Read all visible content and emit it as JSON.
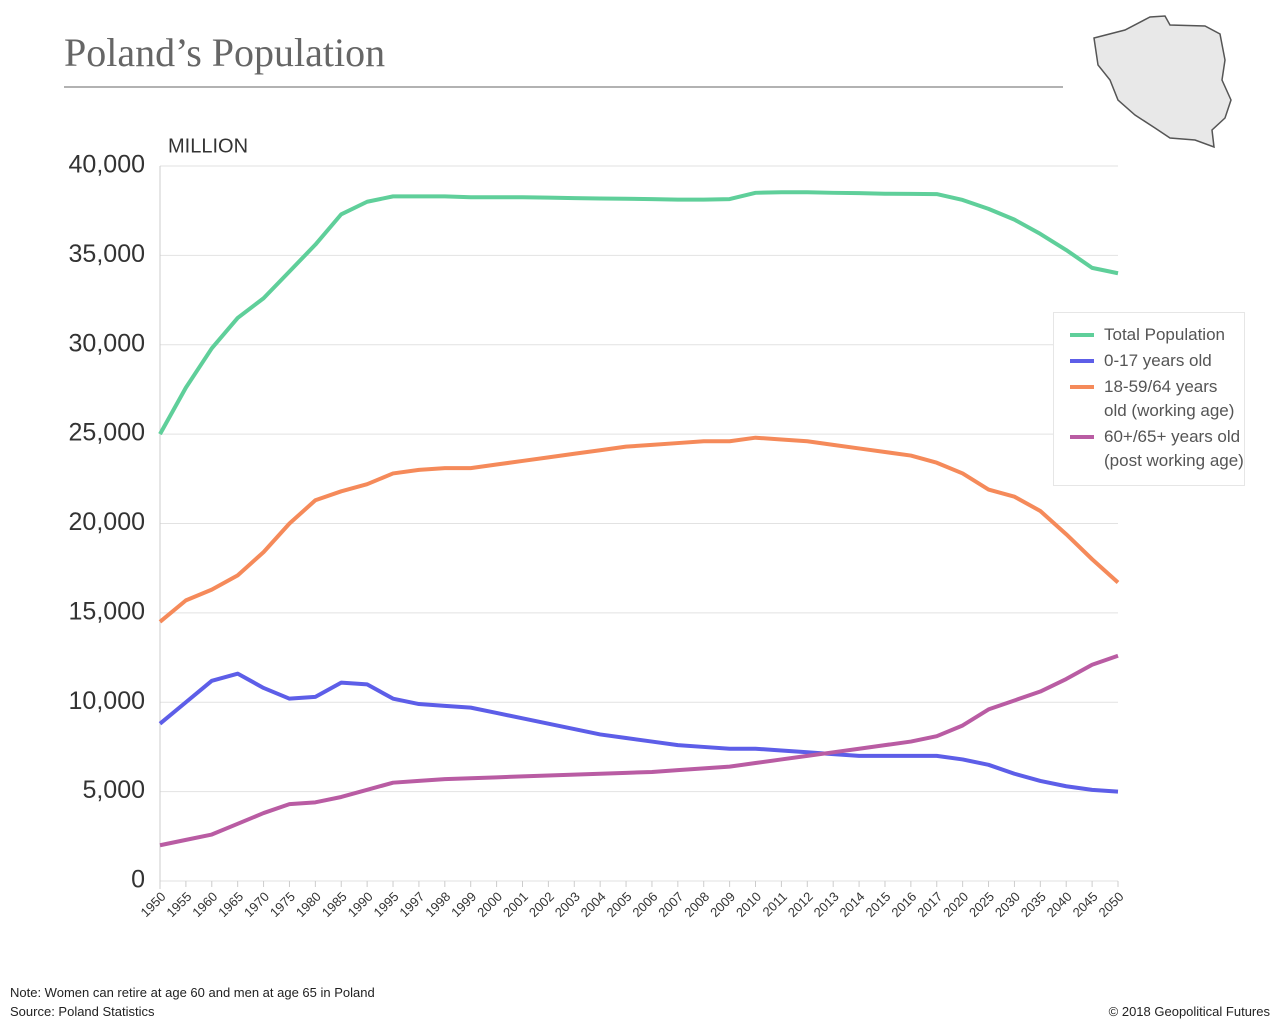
{
  "chart_data": {
    "type": "line",
    "title": "Poland’s Population",
    "y_label": "MILLION",
    "note": "Note: Women can retire at age 60 and men at age 65 in Poland",
    "source": "Source: Poland Statistics",
    "credit": "© 2018 Geopolitical Futures",
    "categories": [
      "1950",
      "1955",
      "1960",
      "1965",
      "1970",
      "1975",
      "1980",
      "1985",
      "1990",
      "1995",
      "1997",
      "1998",
      "1999",
      "2000",
      "2001",
      "2002",
      "2003",
      "2004",
      "2005",
      "2006",
      "2007",
      "2008",
      "2009",
      "2010",
      "2011",
      "2012",
      "2013",
      "2014",
      "2015",
      "2016",
      "2017",
      "2020",
      "2025",
      "2030",
      "2035",
      "2040",
      "2045",
      "2050"
    ],
    "series": [
      {
        "name": "Total Population",
        "color": "#5fcf9a",
        "values": [
          25000,
          27600,
          29800,
          31500,
          32600,
          34100,
          35600,
          37300,
          38000,
          38300,
          38300,
          38300,
          38250,
          38250,
          38250,
          38230,
          38200,
          38180,
          38170,
          38150,
          38120,
          38120,
          38150,
          38500,
          38530,
          38530,
          38500,
          38480,
          38450,
          38440,
          38430,
          38100,
          37600,
          37000,
          36200,
          35300,
          34300,
          34000
        ]
      },
      {
        "name": "0-17 years old",
        "color": "#5d5ee8",
        "values": [
          8800,
          10000,
          11200,
          11600,
          10800,
          10200,
          10300,
          11100,
          11000,
          10200,
          9900,
          9800,
          9700,
          9400,
          9100,
          8800,
          8500,
          8200,
          8000,
          7800,
          7600,
          7500,
          7400,
          7400,
          7300,
          7200,
          7100,
          7000,
          7000,
          7000,
          7000,
          6800,
          6500,
          6000,
          5600,
          5300,
          5100,
          5000
        ]
      },
      {
        "name": "18-59/64 years old (working age)",
        "color": "#f58a5a",
        "values": [
          14500,
          15700,
          16300,
          17100,
          18400,
          20000,
          21300,
          21800,
          22200,
          22800,
          23000,
          23100,
          23100,
          23300,
          23500,
          23700,
          23900,
          24100,
          24300,
          24400,
          24500,
          24600,
          24600,
          24800,
          24700,
          24600,
          24400,
          24200,
          24000,
          23800,
          23400,
          22800,
          21900,
          21500,
          20700,
          19400,
          18000,
          16700
        ]
      },
      {
        "name": "60+/65+ years old (post working age)",
        "color": "#b95ca3",
        "values": [
          2000,
          2300,
          2600,
          3200,
          3800,
          4300,
          4400,
          4700,
          5100,
          5500,
          5600,
          5700,
          5750,
          5800,
          5850,
          5900,
          5950,
          6000,
          6050,
          6100,
          6200,
          6300,
          6400,
          6600,
          6800,
          7000,
          7200,
          7400,
          7600,
          7800,
          8100,
          8700,
          9600,
          10100,
          10600,
          11300,
          12100,
          12600
        ]
      }
    ],
    "ylim": [
      0,
      40000
    ],
    "yticks": [
      0,
      {
        "value": 5000,
        "label": "5,000"
      },
      {
        "value": 10000,
        "label": "10,000"
      },
      {
        "value": 15000,
        "label": "15,000"
      },
      {
        "value": 20000,
        "label": "20,000"
      },
      {
        "value": 25000,
        "label": "25,000"
      },
      {
        "value": 30000,
        "label": "30,000"
      },
      {
        "value": 35000,
        "label": "35,000"
      },
      {
        "value": 40000,
        "label": "40,000"
      }
    ],
    "grid": true
  }
}
